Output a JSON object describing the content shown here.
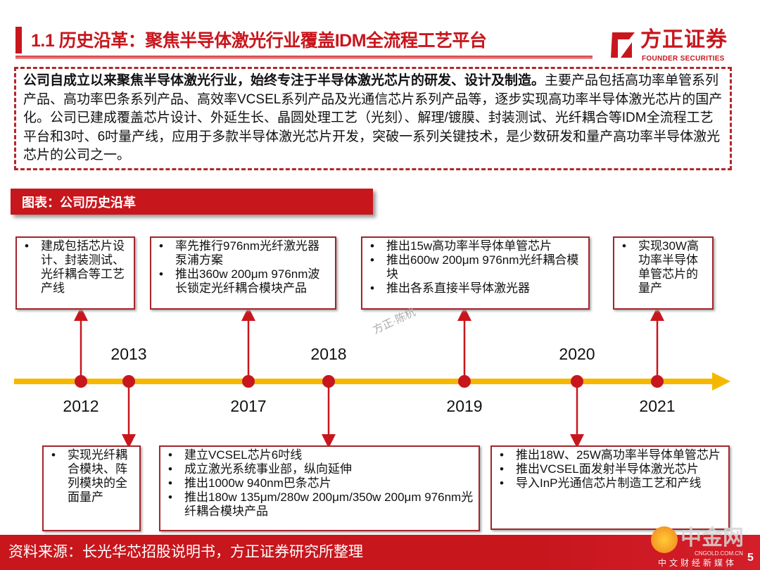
{
  "header": {
    "title": "1.1 历史沿革：聚焦半导体激光行业覆盖IDM全流程工艺平台",
    "logo_cn": "方正证券",
    "logo_en": "FOUNDER SECURITIES"
  },
  "intro": {
    "bold": "公司自成立以来聚焦半导体激光行业，始终专注于半导体激光芯片的研发、设计及制造。",
    "text": "主要产品包括高功率单管系列产品、高功率巴条系列产品、高效率VCSEL系列产品及光通信芯片系列产品等，逐步实现高功率半导体激光芯片的国产化。公司已建成覆盖芯片设计、外延生长、晶圆处理工艺（光刻）、解理/镀膜、封装测试、光纤耦合等IDM全流程工艺平台和3吋、6吋量产线，应用于多款半导体激光芯片开发，突破一系列关键技术，是少数研发和量产高功率半导体激光芯片的公司之一。"
  },
  "banner": "图表：公司历史沿革",
  "timeline": {
    "events": [
      {
        "year": "2012",
        "items": [
          "建成包括芯片设计、封装测试、光纤耦合等工艺产线"
        ]
      },
      {
        "year": "2013",
        "items": [
          "实现光纤耦合模块、阵列模块的全面量产"
        ]
      },
      {
        "year": "2017",
        "items": [
          "率先推行976nm光纤激光器泵浦方案",
          "推出360w 200μm 976nm波长锁定光纤耦合模块产品"
        ]
      },
      {
        "year": "2018",
        "items": [
          "建立VCSEL芯片6吋线",
          "成立激光系统事业部，纵向延伸",
          "推出1000w 940nm巴条芯片",
          "推出180w 135μm/280w 200μm/350w 200μm 976nm光纤耦合模块产品"
        ]
      },
      {
        "year": "2019",
        "items": [
          "推出15w高功率半导体单管芯片",
          "推出600w 200μm 976nm光纤耦合模块",
          "推出各系直接半导体激光器"
        ]
      },
      {
        "year": "2020",
        "items": [
          "推出18W、25W高功率半导体单管芯片",
          "推出VCSEL面发射半导体激光芯片",
          "导入InP光通信芯片制造工艺和产线"
        ]
      },
      {
        "year": "2021",
        "items": [
          "实现30W高功率半导体单管芯片的量产"
        ]
      }
    ],
    "colors": {
      "axis": "#f5b800",
      "dot": "#c8161d",
      "border": "#a3262b"
    }
  },
  "watermark": "方正·陈杭",
  "footer": {
    "source": "资料来源：长光华芯招股说明书，方正证券研究所整理",
    "page": "5",
    "cngold_name": "中金网",
    "cngold_url": "CNGOLD.COM.CN",
    "cngold_sub": "中文财经新媒体"
  }
}
